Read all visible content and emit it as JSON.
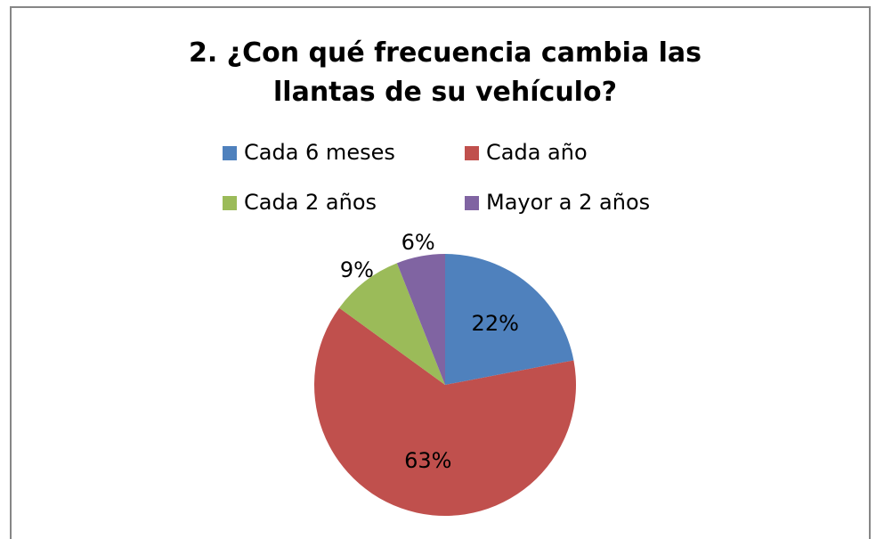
{
  "chart_data": {
    "type": "pie",
    "title": "2. ¿Con qué frecuencia cambia las llantas de su vehículo?",
    "categories": [
      "Cada 6 meses",
      "Cada año",
      "Cada 2 años",
      "Mayor a 2 años"
    ],
    "values": [
      22,
      63,
      9,
      6
    ],
    "value_labels": [
      "22%",
      "63%",
      "9%",
      "6%"
    ],
    "colors": [
      "#4f81bd",
      "#c0504d",
      "#9bbb59",
      "#8064a2"
    ],
    "legend": "top"
  }
}
